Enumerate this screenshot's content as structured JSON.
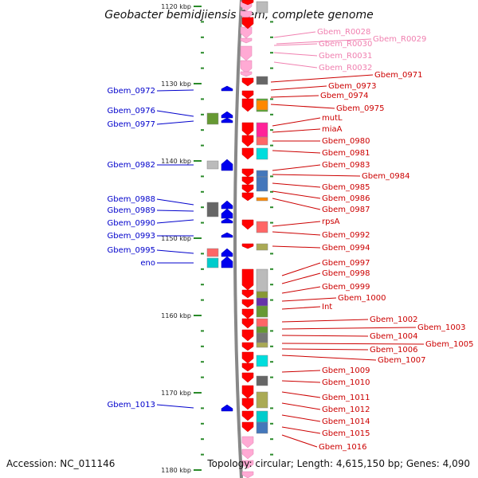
{
  "title": "Geobacter bemidjiensis Bem, complete genome",
  "accession": "Accession: NC_011146",
  "topology": "Topology: circular; Length: 4,615,150 bp; Genes: 4,090",
  "colors": {
    "rna_label": "#f080b0",
    "right_label": "#cc0000",
    "left_label": "#0000cc",
    "tick": "#2a8a2a",
    "backbone": "#888888"
  },
  "scale_ticks": [
    {
      "kbp": 1120,
      "label": "1120 kbp"
    },
    {
      "kbp": 1130,
      "label": "1130 kbp"
    },
    {
      "kbp": 1140,
      "label": "1140 kbp"
    },
    {
      "kbp": 1150,
      "label": "1150 kbp"
    },
    {
      "kbp": 1160,
      "label": "1160 kbp"
    },
    {
      "kbp": 1170,
      "label": "1170 kbp"
    },
    {
      "kbp": 1180,
      "label": "1180 kbp"
    }
  ],
  "right_labels": [
    {
      "text": "Gbem_R0028",
      "kind": "rna"
    },
    {
      "text": "Gbem_R0029",
      "kind": "rna"
    },
    {
      "text": "Gbem_R0030",
      "kind": "rna"
    },
    {
      "text": "Gbem_R0031",
      "kind": "rna"
    },
    {
      "text": "Gbem_R0032",
      "kind": "rna"
    },
    {
      "text": "Gbem_0971",
      "kind": "gene"
    },
    {
      "text": "Gbem_0973",
      "kind": "gene"
    },
    {
      "text": "Gbem_0974",
      "kind": "gene"
    },
    {
      "text": "Gbem_0975",
      "kind": "gene"
    },
    {
      "text": "mutL",
      "kind": "gene"
    },
    {
      "text": "miaA",
      "kind": "gene"
    },
    {
      "text": "Gbem_0980",
      "kind": "gene"
    },
    {
      "text": "Gbem_0981",
      "kind": "gene"
    },
    {
      "text": "Gbem_0983",
      "kind": "gene"
    },
    {
      "text": "Gbem_0984",
      "kind": "gene"
    },
    {
      "text": "Gbem_0985",
      "kind": "gene"
    },
    {
      "text": "Gbem_0986",
      "kind": "gene"
    },
    {
      "text": "Gbem_0987",
      "kind": "gene"
    },
    {
      "text": "rpsA",
      "kind": "gene"
    },
    {
      "text": "Gbem_0992",
      "kind": "gene"
    },
    {
      "text": "Gbem_0994",
      "kind": "gene"
    },
    {
      "text": "Gbem_0997",
      "kind": "gene"
    },
    {
      "text": "Gbem_0998",
      "kind": "gene"
    },
    {
      "text": "Gbem_0999",
      "kind": "gene"
    },
    {
      "text": "Gbem_1000",
      "kind": "gene"
    },
    {
      "text": "Int",
      "kind": "gene"
    },
    {
      "text": "Gbem_1002",
      "kind": "gene"
    },
    {
      "text": "Gbem_1003",
      "kind": "gene"
    },
    {
      "text": "Gbem_1004",
      "kind": "gene"
    },
    {
      "text": "Gbem_1005",
      "kind": "gene"
    },
    {
      "text": "Gbem_1006",
      "kind": "gene"
    },
    {
      "text": "Gbem_1007",
      "kind": "gene"
    },
    {
      "text": "Gbem_1009",
      "kind": "gene"
    },
    {
      "text": "Gbem_1010",
      "kind": "gene"
    },
    {
      "text": "Gbem_1011",
      "kind": "gene"
    },
    {
      "text": "Gbem_1012",
      "kind": "gene"
    },
    {
      "text": "Gbem_1014",
      "kind": "gene"
    },
    {
      "text": "Gbem_1015",
      "kind": "gene"
    },
    {
      "text": "Gbem_1016",
      "kind": "gene"
    }
  ],
  "left_labels": [
    {
      "text": "Gbem_0972"
    },
    {
      "text": "Gbem_0976"
    },
    {
      "text": "Gbem_0977"
    },
    {
      "text": "Gbem_0982"
    },
    {
      "text": "Gbem_0988"
    },
    {
      "text": "Gbem_0989"
    },
    {
      "text": "Gbem_0990"
    },
    {
      "text": "Gbem_0993"
    },
    {
      "text": "Gbem_0995"
    },
    {
      "text": "eno"
    },
    {
      "text": "Gbem_1013"
    }
  ]
}
